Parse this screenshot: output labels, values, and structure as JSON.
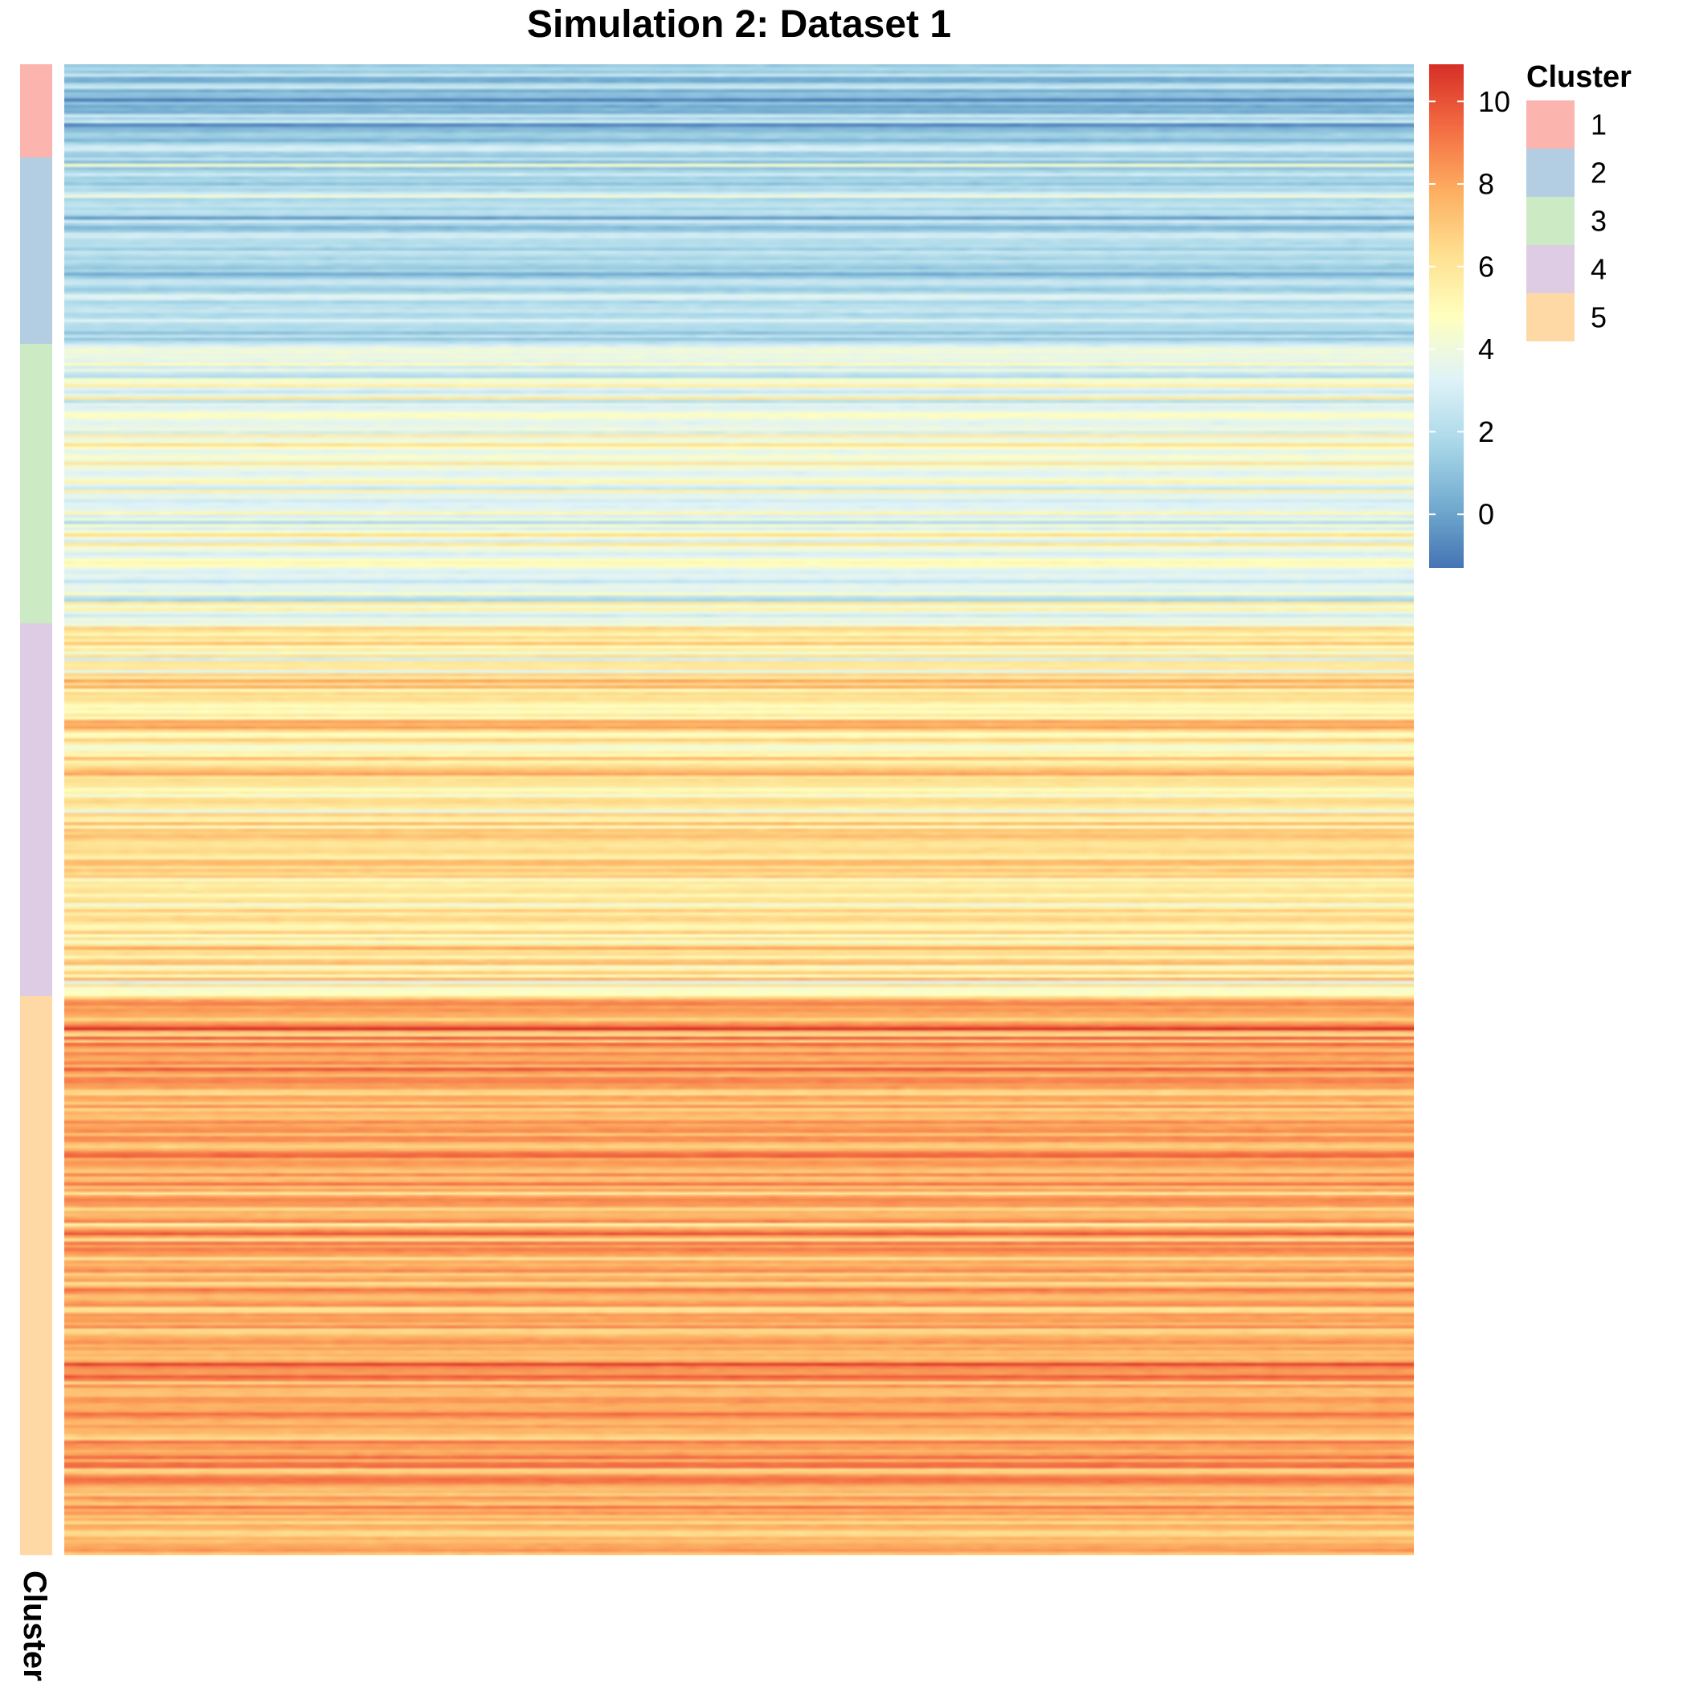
{
  "chart_data": {
    "type": "heatmap",
    "title": "Simulation 2: Dataset 1",
    "row_annotation": {
      "label": "Cluster",
      "groups": [
        {
          "cluster": "1",
          "row_count": 30,
          "color": "#FBB4AE"
        },
        {
          "cluster": "2",
          "row_count": 60,
          "color": "#B3CDE3"
        },
        {
          "cluster": "3",
          "row_count": 90,
          "color": "#CCEBC5"
        },
        {
          "cluster": "4",
          "row_count": 120,
          "color": "#DECBE4"
        },
        {
          "cluster": "5",
          "row_count": 180,
          "color": "#FED9A6"
        }
      ]
    },
    "cluster_means": [
      1,
      2,
      4,
      6,
      8
    ],
    "row_count": 480,
    "column_count": 100,
    "color_scale": {
      "range": [
        -1.3,
        10.9
      ],
      "ticks": [
        0,
        2,
        4,
        6,
        8,
        10
      ],
      "tick_labels": [
        "0",
        "2",
        "4",
        "6",
        "8",
        "10"
      ],
      "palette": [
        "#4575B4",
        "#74ADD1",
        "#ABD9E9",
        "#E0F3F8",
        "#FFFFBF",
        "#FEE090",
        "#FDAE61",
        "#F46D43",
        "#D73027"
      ]
    },
    "legend": {
      "title": "Cluster",
      "items": [
        "1",
        "2",
        "3",
        "4",
        "5"
      ],
      "placement": "top-right"
    },
    "grid": false
  }
}
